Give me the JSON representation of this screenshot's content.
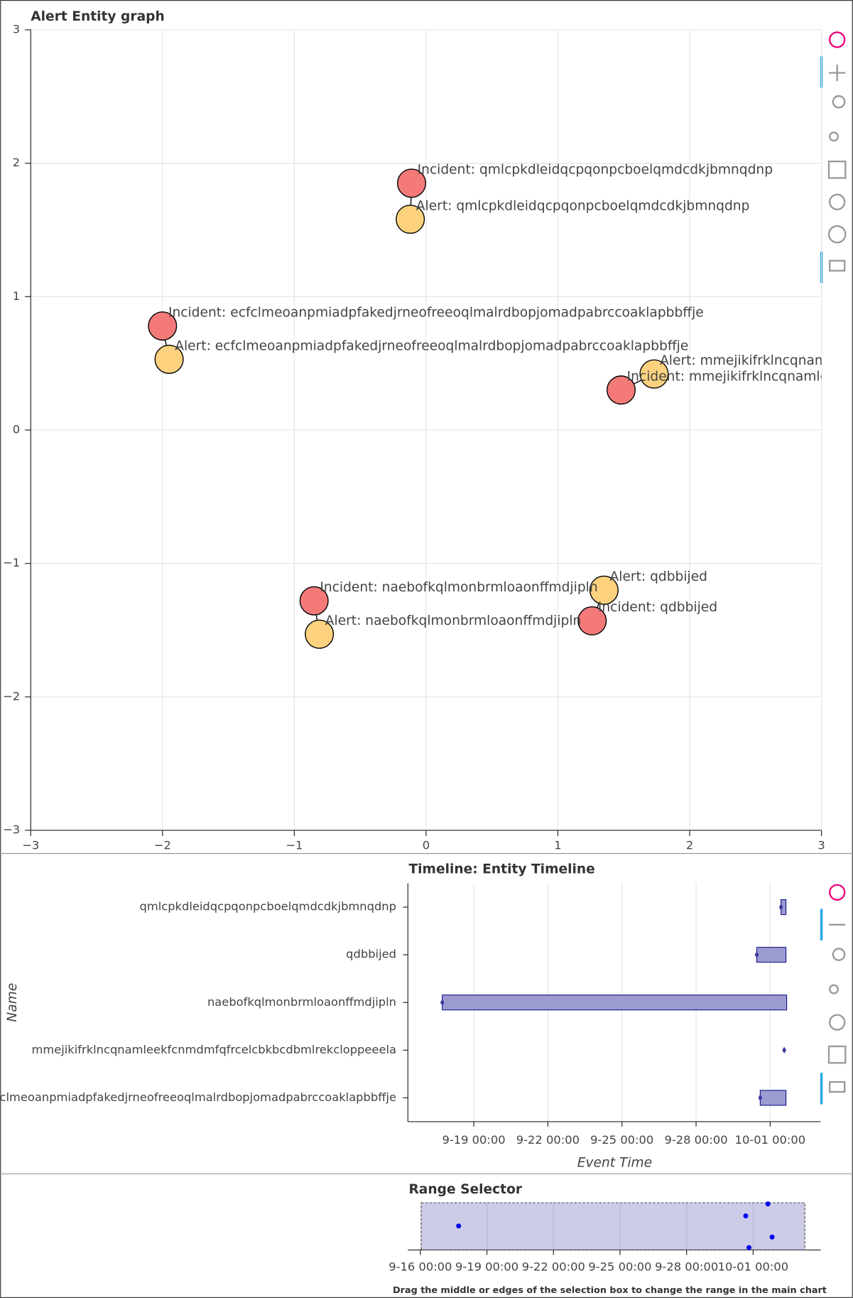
{
  "chart_data": [
    {
      "type": "scatter",
      "title": "Alert Entity graph",
      "xlim": [
        -3,
        3
      ],
      "ylim": [
        -3,
        3
      ],
      "xticks": [
        {
          "value": -3,
          "label": "−3"
        },
        {
          "value": -2,
          "label": "−2"
        },
        {
          "value": -1,
          "label": "−1"
        },
        0,
        1,
        2,
        3
      ],
      "yticks": [
        {
          "value": -3,
          "label": "−3"
        },
        {
          "value": -2,
          "label": "−2"
        },
        {
          "value": -1,
          "label": "−1"
        },
        0,
        1,
        2,
        3
      ],
      "grid": true,
      "series": [
        {
          "color": "#f47a7a",
          "x": [
            -0.11,
            -2.0,
            1.48,
            -0.85,
            1.26
          ],
          "values": [
            1.85,
            0.78,
            0.3,
            -1.28,
            -1.43
          ],
          "labels": [
            "Incident: qmlcpkdleidqcpqonpcboelqmdcdkjbmnqdnp",
            "Incident: ecfclmeoanpmiadpfakedjrneofreeoqlmalrdbopjomadpabrccoaklapbbffje",
            "Incident: mmejikifrklncqnamleekfcnmdmfqfrcelcbkbcdbmlrekcloppeeela",
            "Incident: naebofkqlmonbrmloaonffmdjipln",
            "Incident: qdbbijed"
          ]
        },
        {
          "color": "#fdd27f",
          "x": [
            -0.12,
            -1.95,
            1.73,
            -0.81,
            1.35
          ],
          "values": [
            1.58,
            0.53,
            0.42,
            -1.53,
            -1.2
          ],
          "labels": [
            "Alert: qmlcpkdleidqcpqonpcboelqmdcdkjbmnqdnp",
            "Alert: ecfclmeoanpmiadpfakedjrneofreeoqlmalrdbopjomadpabrccoaklapbbffje",
            "Alert: mmejikifrklncqnamleekfcnmdmfqfrcelcbkbcdbmlrekcloppeeela",
            "Alert: naebofkqlmonbrmloaonffmdjipln",
            "Alert: qdbbijed"
          ]
        }
      ]
    },
    {
      "type": "timeline",
      "title": "Timeline: Entity Timeline",
      "y_label": "Name",
      "x_label": "Event Time",
      "categories": [
        "qmlcpkdleidqcpqonpcboelqmdcdkjbmnqdnp",
        "qdbbijed",
        "naebofkqlmonbrmloaonffmdjipln",
        "mmejikifrklncqnamleekfcnmdmfqfrcelcbkbcdbmlrekcloppeeela",
        "ecfclmeoanpmiadpfakedjrneofreeoqlmalrdbopjomadpabrccoaklapbbffje"
      ],
      "start": [
        "10-01T10:30",
        "09-30T11:00",
        "09-17T17:24",
        "10-01T13:40",
        "09-30T14:20"
      ],
      "end": [
        "10-01T15:20",
        "10-01T15:20",
        "10-01T16:00",
        "10-01T13:40",
        "10-01T15:20"
      ],
      "color": "#9c9cd1",
      "xlim": [
        "09-16T08:00",
        "10-03T01:00"
      ],
      "xticks": [
        {
          "value": "09-19T00:00",
          "label": "9-19 00:00"
        },
        {
          "value": "09-22T00:00",
          "label": "9-22 00:00"
        },
        {
          "value": "09-25T00:00",
          "label": "9-25 00:00"
        },
        {
          "value": "09-28T00:00",
          "label": "9-28 00:00"
        },
        {
          "value": "10-01T00:00",
          "label": "10-01 00:00"
        }
      ],
      "grid": true
    },
    {
      "type": "range",
      "title": "Range Selector",
      "footnote": "Drag the middle or edges of the selection box to change the range in the main chart",
      "xlim": [
        "09-15T10:30",
        "10-04T01:00"
      ],
      "ylim": [
        0,
        1
      ],
      "xticks": [
        {
          "value": "09-16T00:00",
          "label": "9-16 00:00"
        },
        {
          "value": "09-19T00:00",
          "label": "9-19 00:00"
        },
        {
          "value": "09-22T00:00",
          "label": "9-22 00:00"
        },
        {
          "value": "09-25T00:00",
          "label": "9-25 00:00"
        },
        {
          "value": "09-28T00:00",
          "label": "9-28 00:00"
        },
        {
          "value": "10-01T00:00",
          "label": "10-01 00:00"
        }
      ],
      "x": [
        "09-17T17:24",
        "09-30T16:00",
        "10-01T16:00",
        "10-01T20:30",
        "09-30T19:30"
      ],
      "values": [
        0.5,
        0.71,
        0.96,
        0.27,
        0.05
      ],
      "selection": [
        "09-16T01:00",
        "10-03T08:00"
      ],
      "color": "#0000ee",
      "grid": true
    }
  ]
}
